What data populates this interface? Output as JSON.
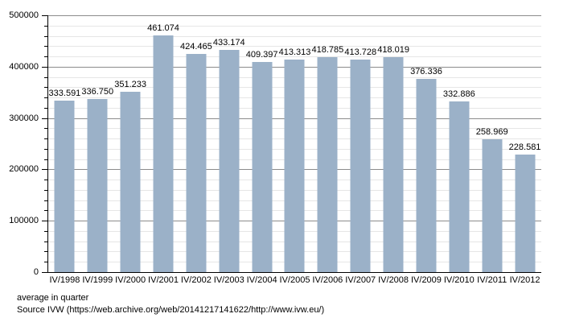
{
  "chart_data": {
    "type": "bar",
    "title": "",
    "xlabel": "",
    "ylabel": "",
    "categories": [
      "IV/1998",
      "IV/1999",
      "IV/2000",
      "IV/2001",
      "IV/2002",
      "IV/2003",
      "IV/2004",
      "IV/2005",
      "IV/2006",
      "IV/2007",
      "IV/2008",
      "IV/2009",
      "IV/2010",
      "IV/2011",
      "IV/2012"
    ],
    "values": [
      333591,
      336750,
      351233,
      461074,
      424465,
      433174,
      409397,
      413313,
      418785,
      413728,
      418019,
      376336,
      332886,
      258969,
      228581
    ],
    "value_labels": [
      "333.591",
      "336.750",
      "351.233",
      "461.074",
      "424.465",
      "433.174",
      "409.397",
      "413.313",
      "418.785",
      "413.728",
      "418.019",
      "376.336",
      "332.886",
      "258.969",
      "228.581"
    ],
    "ylim": [
      0,
      500000
    ],
    "y_major_ticks": [
      0,
      100000,
      200000,
      300000,
      400000,
      500000
    ],
    "y_tick_labels": [
      "0",
      "100000",
      "200000",
      "300000",
      "400000",
      "500000"
    ],
    "y_minor_step": 20000,
    "grid": "major and minor horizontal gridlines",
    "legend": "none",
    "colors": {
      "bar": "#9bb1c8",
      "major_grid": "#8c8c8c",
      "minor_grid": "#e6e6e6",
      "axis": "#000000",
      "text": "#000000",
      "background": "#ffffff"
    }
  },
  "footer": {
    "line1": "average in quarter",
    "line2": "Source IVW (https://web.archive.org/web/20141217141622/http://www.ivw.eu/)"
  }
}
